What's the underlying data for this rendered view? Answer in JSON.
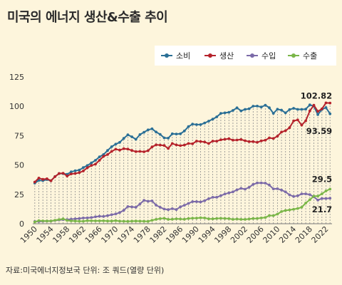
{
  "title": "미국의 에너지 생산&수출 추이",
  "source": "자료:미국에너지정보국 단위: 조 쿼드(열량 단위)",
  "colors": {
    "background": "#fdf5dc",
    "consumption": "#2a6f96",
    "production": "#b5222b",
    "imports": "#7b6aa8",
    "exports": "#7ab648",
    "grid": "#bdbdbd"
  },
  "chart_data": {
    "type": "line",
    "title": "미국의 에너지 생산&수출 추이",
    "xlabel": "",
    "ylabel": "",
    "ylim": [
      0,
      125
    ],
    "yticks": [
      0,
      25,
      50,
      75,
      100,
      125
    ],
    "xlim": [
      1949.5,
      2023.5
    ],
    "xticks": [
      "1950",
      "1954",
      "1958",
      "1962",
      "1966",
      "1970",
      "1974",
      "1978",
      "1982",
      "1986",
      "1990",
      "1994",
      "1998",
      "2002",
      "2006",
      "2010",
      "2014",
      "2018",
      "2022"
    ],
    "grid": "vertical dashed lines at each year",
    "legend_position": "top-right",
    "x": [
      1950,
      1951,
      1952,
      1953,
      1954,
      1955,
      1956,
      1957,
      1958,
      1959,
      1960,
      1961,
      1962,
      1963,
      1964,
      1965,
      1966,
      1967,
      1968,
      1969,
      1970,
      1971,
      1972,
      1973,
      1974,
      1975,
      1976,
      1977,
      1978,
      1979,
      1980,
      1981,
      1982,
      1983,
      1984,
      1985,
      1986,
      1987,
      1988,
      1989,
      1990,
      1991,
      1992,
      1993,
      1994,
      1995,
      1996,
      1997,
      1998,
      1999,
      2000,
      2001,
      2002,
      2003,
      2004,
      2005,
      2006,
      2007,
      2008,
      2009,
      2010,
      2011,
      2012,
      2013,
      2014,
      2015,
      2016,
      2017,
      2018,
      2019,
      2020,
      2021,
      2022,
      2023
    ],
    "series": [
      {
        "name": "소비",
        "color": "#2a6f96",
        "values": [
          34.6,
          36.9,
          36.7,
          37.6,
          36.6,
          40.2,
          42.8,
          42.7,
          42.1,
          44.2,
          45.1,
          45.7,
          47.8,
          49.6,
          51.8,
          54.0,
          57.0,
          58.9,
          62.4,
          65.6,
          67.8,
          69.3,
          72.7,
          75.7,
          74.0,
          71.9,
          75.9,
          77.9,
          79.9,
          80.8,
          78.1,
          76.1,
          73.1,
          72.9,
          76.6,
          76.4,
          76.6,
          79.0,
          82.7,
          84.8,
          84.4,
          84.4,
          85.8,
          87.4,
          89.1,
          91.0,
          94.0,
          94.4,
          94.9,
          96.5,
          98.7,
          96.1,
          97.4,
          97.9,
          100.1,
          100.2,
          99.4,
          101.0,
          98.8,
          94.0,
          97.5,
          96.8,
          94.4,
          97.2,
          98.3,
          97.4,
          97.4,
          97.6,
          101.2,
          100.1,
          92.9,
          97.3,
          98.9,
          93.59
        ]
      },
      {
        "name": "생산",
        "color": "#b5222b",
        "values": [
          35.5,
          38.9,
          37.8,
          38.3,
          36.6,
          40.1,
          42.8,
          43.0,
          40.6,
          42.4,
          42.8,
          43.5,
          44.9,
          47.7,
          49.6,
          50.7,
          54.0,
          57.4,
          58.9,
          61.6,
          63.5,
          62.7,
          63.9,
          63.6,
          62.4,
          61.4,
          61.6,
          61.3,
          62.2,
          65.4,
          67.2,
          67.0,
          66.6,
          64.1,
          68.3,
          67.1,
          66.5,
          67.0,
          68.3,
          68.1,
          70.4,
          70.0,
          69.6,
          68.3,
          70.4,
          70.3,
          71.5,
          71.9,
          72.4,
          71.2,
          71.3,
          71.7,
          70.7,
          69.9,
          69.9,
          69.3,
          70.6,
          71.1,
          73.1,
          72.6,
          74.6,
          78.1,
          79.2,
          81.8,
          87.6,
          88.4,
          84.0,
          87.7,
          96.0,
          101.0,
          95.7,
          97.8,
          102.9,
          102.82
        ]
      },
      {
        "name": "수입",
        "color": "#7b6aa8",
        "values": [
          1.9,
          1.9,
          2.1,
          2.3,
          2.3,
          2.8,
          3.2,
          3.5,
          3.6,
          3.8,
          4.2,
          4.4,
          4.9,
          5.0,
          5.3,
          5.9,
          6.4,
          6.2,
          6.9,
          7.7,
          8.3,
          9.5,
          11.4,
          14.6,
          14.3,
          14.0,
          16.8,
          19.9,
          19.1,
          19.5,
          15.8,
          14.0,
          12.5,
          12.0,
          12.8,
          12.1,
          14.4,
          15.7,
          17.3,
          18.8,
          18.8,
          18.5,
          19.6,
          21.3,
          22.5,
          22.5,
          23.9,
          25.3,
          26.3,
          27.1,
          28.9,
          30.1,
          29.4,
          31.0,
          33.5,
          34.7,
          34.7,
          34.6,
          32.9,
          29.7,
          29.8,
          28.7,
          27.1,
          24.6,
          23.2,
          23.8,
          25.4,
          25.4,
          24.8,
          22.9,
          20.1,
          21.5,
          21.5,
          21.7
        ]
      },
      {
        "name": "수출",
        "color": "#7ab648",
        "values": [
          1.5,
          2.6,
          2.4,
          2.3,
          2.3,
          3.0,
          3.6,
          4.1,
          2.8,
          2.4,
          2.3,
          2.1,
          2.1,
          2.6,
          2.5,
          2.4,
          2.4,
          2.5,
          2.3,
          2.3,
          2.6,
          2.2,
          2.1,
          2.0,
          2.2,
          2.3,
          2.2,
          2.1,
          2.0,
          2.9,
          3.7,
          4.3,
          4.6,
          3.7,
          3.8,
          4.2,
          4.0,
          3.8,
          4.4,
          4.7,
          4.8,
          5.1,
          4.9,
          4.2,
          4.1,
          4.5,
          4.6,
          4.5,
          4.3,
          3.7,
          4.0,
          3.7,
          3.7,
          4.0,
          4.4,
          4.5,
          4.9,
          5.3,
          7.0,
          6.9,
          8.2,
          10.4,
          11.3,
          11.8,
          12.3,
          13.0,
          14.0,
          17.6,
          20.4,
          23.5,
          23.5,
          25.4,
          27.9,
          29.5
        ]
      }
    ],
    "annotations": [
      {
        "label": "102.82",
        "series": "생산",
        "x": 2023
      },
      {
        "label": "93.59",
        "series": "소비",
        "x": 2023
      },
      {
        "label": "29.5",
        "series": "수출",
        "x": 2023
      },
      {
        "label": "21.7",
        "series": "수입",
        "x": 2023
      }
    ]
  }
}
